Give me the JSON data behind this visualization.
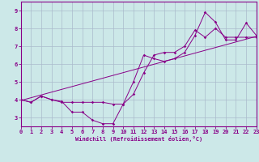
{
  "xlabel": "Windchill (Refroidissement éolien,°C)",
  "xlim": [
    0,
    23
  ],
  "ylim": [
    2.5,
    9.5
  ],
  "xticks": [
    0,
    1,
    2,
    3,
    4,
    5,
    6,
    7,
    8,
    9,
    10,
    11,
    12,
    13,
    14,
    15,
    16,
    17,
    18,
    19,
    20,
    21,
    22,
    23
  ],
  "yticks": [
    3,
    4,
    5,
    6,
    7,
    8,
    9
  ],
  "bg_color": "#cce8e8",
  "line_color": "#880088",
  "grid_color": "#aabbcc",
  "line1_x": [
    0,
    1,
    2,
    3,
    4,
    5,
    6,
    7,
    8,
    9,
    10,
    11,
    12,
    13,
    14,
    15,
    16,
    17,
    18,
    19,
    20,
    21,
    22,
    23
  ],
  "line1_y": [
    4.0,
    3.85,
    4.2,
    4.0,
    3.9,
    3.3,
    3.3,
    2.85,
    2.65,
    2.65,
    3.75,
    5.0,
    6.5,
    6.3,
    6.15,
    6.3,
    6.65,
    7.6,
    8.9,
    8.35,
    7.35,
    7.35,
    8.3,
    7.6
  ],
  "line2_x": [
    0,
    1,
    2,
    3,
    4,
    5,
    6,
    7,
    8,
    9,
    10,
    11,
    12,
    13,
    14,
    15,
    16,
    17,
    18,
    19,
    20,
    21,
    22,
    23
  ],
  "line2_y": [
    4.0,
    3.85,
    4.2,
    4.0,
    3.85,
    3.85,
    3.85,
    3.85,
    3.85,
    3.75,
    3.75,
    4.3,
    5.5,
    6.5,
    6.65,
    6.65,
    7.0,
    7.9,
    7.5,
    8.0,
    7.5,
    7.5,
    7.5,
    7.5
  ],
  "line3_x": [
    0,
    23
  ],
  "line3_y": [
    3.95,
    7.55
  ]
}
